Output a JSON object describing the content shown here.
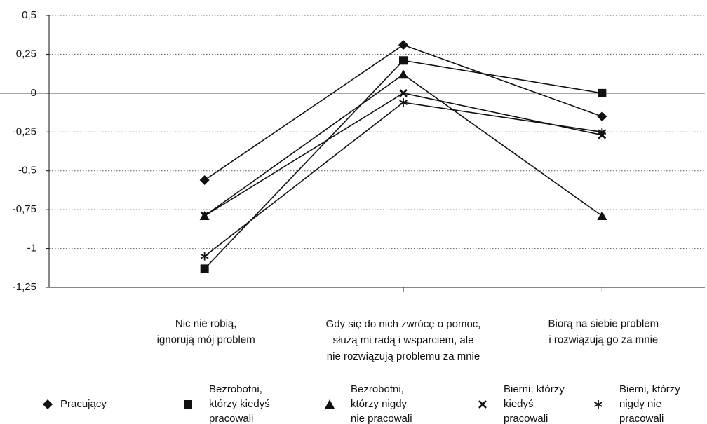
{
  "chart_data": {
    "type": "line",
    "categories": [
      "Nic nie robią,\nignorują mój problem",
      "Gdy się do nich zwrócę o pomoc,\nsłużą mi radą i wsparciem, ale\nnie rozwiązują problemu za mnie",
      "Biorą na siebie problem\ni rozwiązują go za mnie"
    ],
    "series": [
      {
        "name": "Pracujący",
        "color": "#111111",
        "marker": "diamond",
        "values": [
          -0.56,
          0.31,
          -0.15
        ]
      },
      {
        "name": "Bezrobotni,\nktórzy kiedyś\npracowali",
        "color": "#111111",
        "marker": "square",
        "values": [
          -1.13,
          0.21,
          0
        ]
      },
      {
        "name": "Bezrobotni,\nktórzy nigdy\nnie pracowali",
        "color": "#111111",
        "marker": "triangle",
        "values": [
          -0.79,
          0.12,
          -0.79
        ]
      },
      {
        "name": "Bierni, którzy\nkiedyś\npracowali",
        "color": "#111111",
        "marker": "x",
        "values": [
          -0.79,
          0.0,
          -0.27
        ]
      },
      {
        "name": "Bierni, którzy\nnigdy nie\npracowali",
        "color": "#111111",
        "marker": "asterisk",
        "values": [
          -1.05,
          -0.06,
          -0.25
        ]
      }
    ],
    "ylim": [
      -1.25,
      0.5
    ],
    "yticks": [
      {
        "value": 0.5,
        "label": "0,5"
      },
      {
        "value": 0.25,
        "label": "0,25"
      },
      0,
      {
        "value": -0.25,
        "label": "-0,25"
      },
      {
        "value": -0.5,
        "label": "-0,5"
      },
      {
        "value": -0.75,
        "label": "-0,75"
      },
      -1,
      {
        "value": -1.25,
        "label": "-1,25"
      }
    ],
    "grid": true,
    "legend": "bottom"
  }
}
